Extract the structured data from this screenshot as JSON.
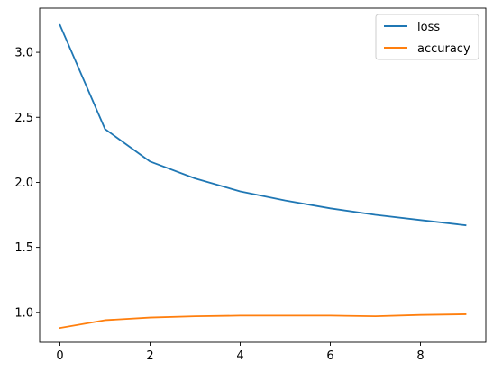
{
  "chart_data": {
    "type": "line",
    "title": "",
    "xlabel": "",
    "ylabel": "",
    "x": [
      0,
      1,
      2,
      3,
      4,
      5,
      6,
      7,
      8,
      9
    ],
    "xlim": [
      -0.45,
      9.45
    ],
    "ylim": [
      0.77,
      3.34
    ],
    "xticks": [
      0,
      2,
      4,
      6,
      8
    ],
    "yticks": [
      1.0,
      1.5,
      2.0,
      2.5,
      3.0
    ],
    "xtick_labels": [
      "0",
      "2",
      "4",
      "6",
      "8"
    ],
    "ytick_labels": [
      "1.0",
      "1.5",
      "2.0",
      "2.5",
      "3.0"
    ],
    "grid": false,
    "legend_position": "top-right",
    "series": [
      {
        "name": "loss",
        "color": "#1f77b4",
        "values": [
          3.21,
          2.41,
          2.16,
          2.03,
          1.93,
          1.86,
          1.8,
          1.75,
          1.71,
          1.67
        ]
      },
      {
        "name": "accuracy",
        "color": "#ff7f0e",
        "values": [
          0.88,
          0.94,
          0.96,
          0.97,
          0.975,
          0.975,
          0.975,
          0.97,
          0.98,
          0.985
        ]
      }
    ]
  }
}
